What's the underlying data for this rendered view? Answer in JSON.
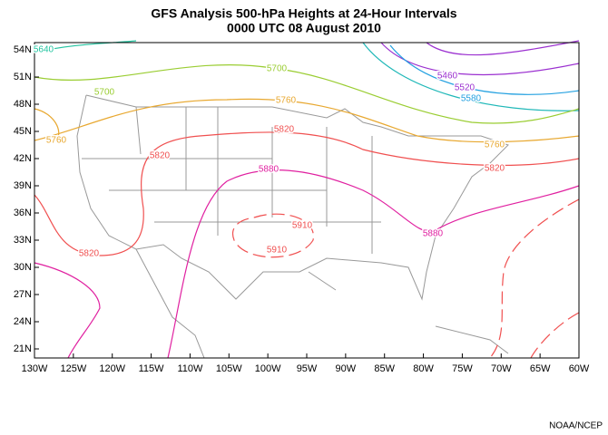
{
  "header": {
    "title": [
      "GFS Analysis 500-hPa Heights at 24-Hour Intervals",
      "0000 UTC 08 August 2010"
    ]
  },
  "axes": {
    "lat_labels": [
      "54N",
      "51N",
      "48N",
      "45N",
      "42N",
      "39N",
      "36N",
      "33N",
      "30N",
      "27N",
      "24N",
      "21N"
    ],
    "lon_labels": [
      "130W",
      "125W",
      "120W",
      "115W",
      "110W",
      "105W",
      "100W",
      "95W",
      "90W",
      "85W",
      "80W",
      "75W",
      "70W",
      "65W",
      "60W"
    ]
  },
  "contour_labels": [
    "5640",
    "5700",
    "5700",
    "5760",
    "5760",
    "5760",
    "5820",
    "5820",
    "5820",
    "5820",
    "5880",
    "5880",
    "5910",
    "5910",
    "5460",
    "5520",
    "5580"
  ],
  "credit": "NOAA/NCEP"
}
